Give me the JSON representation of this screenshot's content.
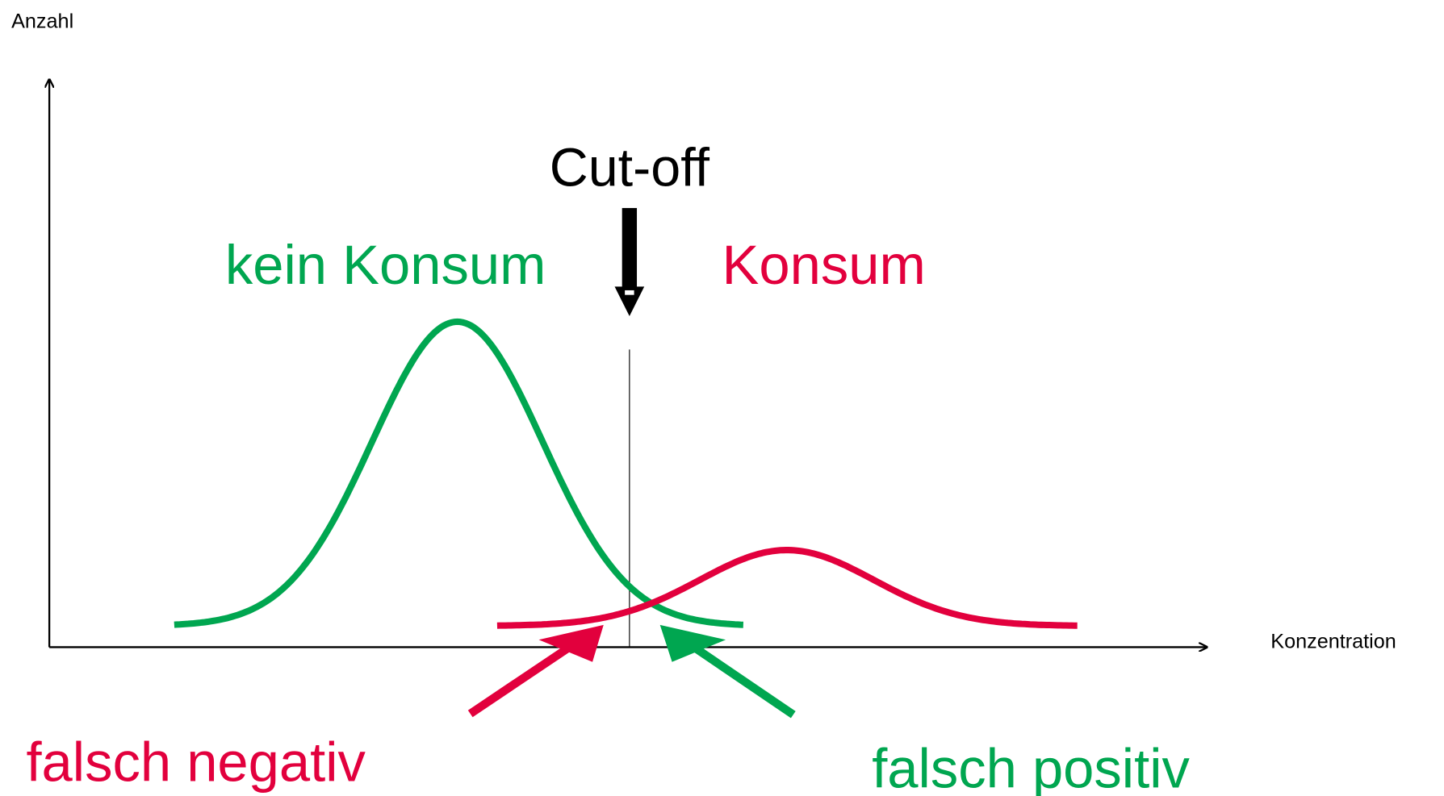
{
  "axes": {
    "y_label": "Anzahl",
    "x_label": "Konzentration"
  },
  "cutoff": {
    "label": "Cut-off"
  },
  "groups": {
    "negative": "kein Konsum",
    "positive": "Konsum"
  },
  "errors": {
    "false_negative": "falsch negativ",
    "false_positive": "falsch positiv"
  }
}
